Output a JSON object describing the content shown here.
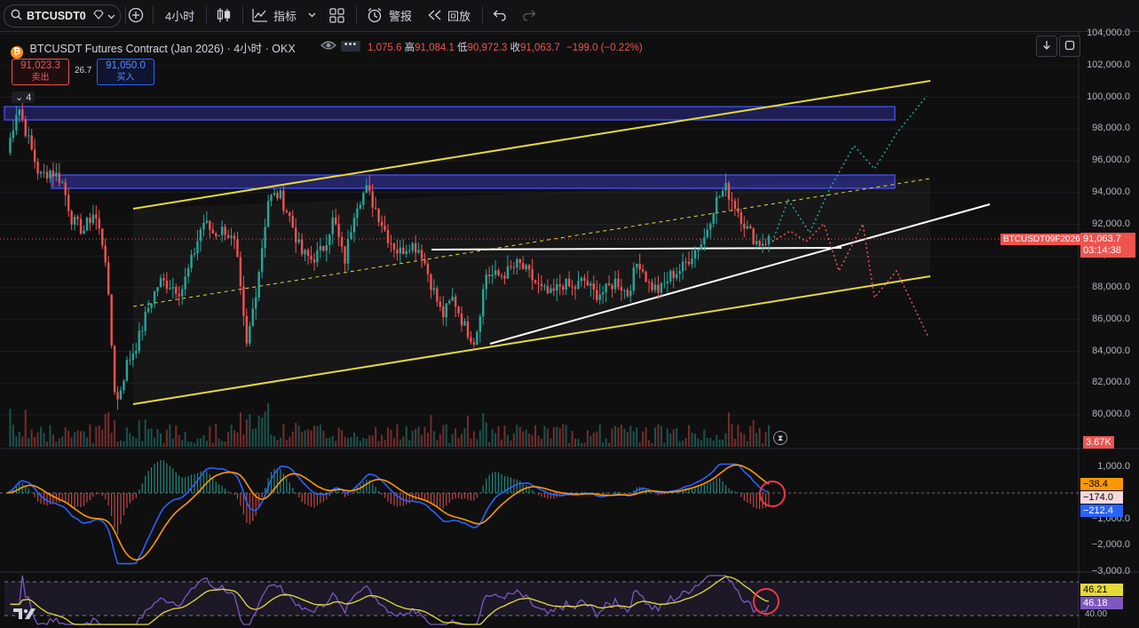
{
  "toolbar": {
    "symbol": "BTCUSDT0",
    "timeframe": "4小时",
    "indicators_label": "指标",
    "alert_label": "警报",
    "replay_label": "回放"
  },
  "legend": {
    "title": "BTCUSDT Futures Contract (Jan 2026)",
    "timeframe": "4小时",
    "exchange": "OKX",
    "ohlc_fragment": "1,075.6",
    "high_label": "高",
    "high_value": "91,084.1",
    "low_label": "低",
    "low_value": "90,972.3",
    "close_label": "收",
    "close_value": "91,063.7",
    "change": "−199.0 (−0.22%)",
    "sell_price": "91,023.3",
    "sell_label": "卖出",
    "spread": "26.7",
    "buy_price": "91,050.0",
    "buy_label": "买入",
    "collapse_count": "4"
  },
  "price_axis": {
    "ticks": [
      "104,000.0",
      "102,000.0",
      "100,000.0",
      "98,000.0",
      "96,000.0",
      "94,000.0",
      "92,000.0",
      "90,000.0",
      "88,000.0",
      "86,000.0",
      "84,000.0",
      "82,000.0",
      "80,000.0"
    ],
    "symbol_tag": "BTCUSDT09F2026",
    "last_price": "91,063.7",
    "countdown": "03:14:38",
    "volume_tag": "3.67K"
  },
  "macd_axis": {
    "ticks": [
      "1,000.0",
      "−1,000.0",
      "−2,000.0",
      "−3,000.0"
    ],
    "tag_orange": "−38.4",
    "tag_hist": "−174.0",
    "tag_blue": "−212.4"
  },
  "rsi_axis": {
    "tag_yellow": "46.21",
    "tag_purple": "46.18",
    "bottom_tick": "40.00"
  },
  "colors": {
    "up": "#26a69a",
    "down": "#ef5350",
    "channel": "#e6d93a",
    "zone": "#3d3dd8",
    "trendline": "#ffffff",
    "circle": "#f23645"
  },
  "chart_data": {
    "type": "candlestick",
    "symbol": "BTCUSDT Futures Contract (Jan 2026)",
    "timeframe": "4小时",
    "ylim": [
      79000,
      104600
    ],
    "last": {
      "open": 91262.7,
      "high": 91084.1,
      "low": 90972.3,
      "close": 91063.7
    },
    "price_path": [
      [
        0,
        96500
      ],
      [
        2,
        99600
      ],
      [
        4,
        97200
      ],
      [
        6,
        95000
      ],
      [
        8,
        95400
      ],
      [
        10,
        94800
      ],
      [
        12,
        92200
      ],
      [
        14,
        91600
      ],
      [
        16,
        92800
      ],
      [
        18,
        90200
      ],
      [
        20,
        80500
      ],
      [
        22,
        83200
      ],
      [
        24,
        84600
      ],
      [
        26,
        86800
      ],
      [
        28,
        88400
      ],
      [
        30,
        88200
      ],
      [
        32,
        87800
      ],
      [
        34,
        89800
      ],
      [
        36,
        92200
      ],
      [
        38,
        91400
      ],
      [
        40,
        91700
      ],
      [
        42,
        90600
      ],
      [
        44,
        84200
      ],
      [
        46,
        88400
      ],
      [
        48,
        93600
      ],
      [
        50,
        93900
      ],
      [
        52,
        92400
      ],
      [
        54,
        90200
      ],
      [
        56,
        89800
      ],
      [
        58,
        90400
      ],
      [
        60,
        92400
      ],
      [
        62,
        89600
      ],
      [
        64,
        93200
      ],
      [
        66,
        94200
      ],
      [
        68,
        92800
      ],
      [
        70,
        91200
      ],
      [
        72,
        90200
      ],
      [
        74,
        90800
      ],
      [
        76,
        90400
      ],
      [
        78,
        88200
      ],
      [
        80,
        86200
      ],
      [
        82,
        87400
      ],
      [
        84,
        85600
      ],
      [
        86,
        84600
      ],
      [
        88,
        88900
      ],
      [
        90,
        88700
      ],
      [
        92,
        89000
      ],
      [
        94,
        89500
      ],
      [
        96,
        88800
      ],
      [
        98,
        87900
      ],
      [
        100,
        87500
      ],
      [
        102,
        88300
      ],
      [
        104,
        87900
      ],
      [
        106,
        88500
      ],
      [
        108,
        87600
      ],
      [
        110,
        87800
      ],
      [
        112,
        88500
      ],
      [
        114,
        87600
      ],
      [
        116,
        89800
      ],
      [
        118,
        88200
      ],
      [
        120,
        87800
      ],
      [
        122,
        88800
      ],
      [
        124,
        89200
      ],
      [
        126,
        90200
      ],
      [
        128,
        91000
      ],
      [
        130,
        93300
      ],
      [
        132,
        94300
      ],
      [
        134,
        93100
      ],
      [
        136,
        91700
      ],
      [
        138,
        90800
      ],
      [
        140,
        91050
      ]
    ],
    "macd": {
      "macd": -212.4,
      "signal": -38.4,
      "histogram": -174.0,
      "ticks": [
        1000,
        -1000,
        -2000,
        -3000
      ]
    },
    "rsi": {
      "rsi": 46.18,
      "ma": 46.21
    },
    "volume_last": "3.67K"
  }
}
